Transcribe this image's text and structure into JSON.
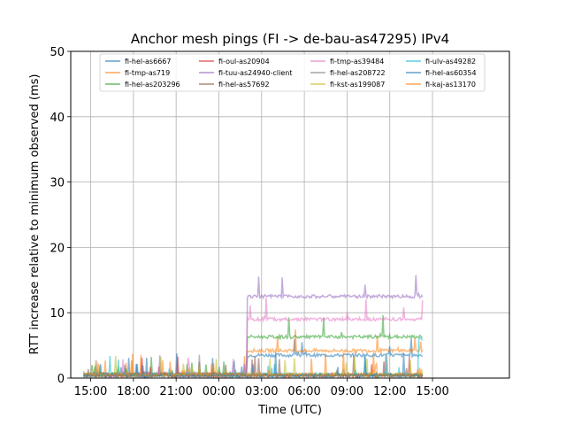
{
  "chart_data": {
    "type": "line",
    "title": "Anchor mesh pings (FI -> de-bau-as47295) IPv4",
    "xlabel": "Time (UTC)",
    "ylabel": "RTT increase relative to minimum observed (ms)",
    "x_range_hours": [
      -1.4,
      29.4
    ],
    "x_tick_values": [
      0,
      3,
      6,
      9,
      12,
      15,
      18,
      21,
      24
    ],
    "x_tick_labels": [
      "15:00",
      "18:00",
      "21:00",
      "00:00",
      "03:00",
      "06:00",
      "09:00",
      "12:00",
      "15:00"
    ],
    "ylim": [
      0,
      50
    ],
    "y_ticks": [
      0,
      10,
      20,
      30,
      40,
      50
    ],
    "grid": true,
    "legend_position": "top-center",
    "legend_columns": 4,
    "series": [
      {
        "name": "fi-hel-as6667",
        "color": "#1f77b4",
        "base": 0.5,
        "step_at": 11.0,
        "step_to": 3.5
      },
      {
        "name": "fi-tmp-as719",
        "color": "#ff7f0e",
        "base": 0.5,
        "step_at": 11.0,
        "step_to": 4.2
      },
      {
        "name": "fi-hel-as203296",
        "color": "#2ca02c",
        "base": 0.6,
        "step_at": 11.0,
        "step_to": 6.3
      },
      {
        "name": "fi-oul-as20904",
        "color": "#d62728",
        "base": 0.4,
        "step_at": null,
        "step_to": null
      },
      {
        "name": "fi-tuu-as24940-client",
        "color": "#9467bd",
        "base": 0.6,
        "step_at": 11.0,
        "step_to": 12.5
      },
      {
        "name": "fi-hel-as57692",
        "color": "#8c564b",
        "base": 0.5,
        "step_at": null,
        "step_to": null
      },
      {
        "name": "fi-tmp-as39484",
        "color": "#e377c2",
        "base": 0.5,
        "step_at": 11.0,
        "step_to": 9.0
      },
      {
        "name": "fi-hel-as208722",
        "color": "#7f7f7f",
        "base": 0.4,
        "step_at": null,
        "step_to": null
      },
      {
        "name": "fi-kst-as199087",
        "color": "#bcbd22",
        "base": 0.5,
        "step_at": null,
        "step_to": null
      },
      {
        "name": "fi-ulv-as49282",
        "color": "#17becf",
        "base": 0.5,
        "step_at": 23.0,
        "step_to": 6.0
      },
      {
        "name": "fi-hel-as60354",
        "color": "#1f77b4",
        "base": 0.4,
        "step_at": null,
        "step_to": null
      },
      {
        "name": "fi-kaj-as13170",
        "color": "#ff7f0e",
        "base": 0.5,
        "step_at": null,
        "step_to": null
      }
    ]
  }
}
